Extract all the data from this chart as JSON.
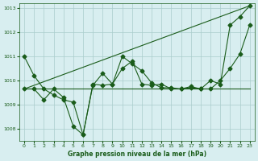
{
  "title": "Graphe pression niveau de la mer (hPa)",
  "background_color": "#d8eef0",
  "grid_color": "#aacccc",
  "line_color": "#1a5c1a",
  "ylim": [
    1007.5,
    1013.2
  ],
  "xlim": [
    -0.5,
    23.5
  ],
  "yticks": [
    1008,
    1009,
    1010,
    1011,
    1012,
    1013
  ],
  "xticks": [
    0,
    1,
    2,
    3,
    4,
    5,
    6,
    7,
    8,
    9,
    10,
    11,
    12,
    13,
    14,
    15,
    16,
    17,
    18,
    19,
    20,
    21,
    22,
    23
  ],
  "series": [
    {
      "x": [
        0,
        1,
        2,
        3,
        4,
        5,
        6,
        7,
        8,
        9,
        10,
        11,
        12,
        13,
        14,
        15,
        16,
        17,
        18,
        19,
        20,
        21,
        22,
        23
      ],
      "y": [
        1011.0,
        1010.2,
        1009.65,
        1009.4,
        1009.2,
        1009.1,
        1007.75,
        1009.85,
        1009.8,
        1009.85,
        1010.5,
        1010.8,
        1009.85,
        1009.8,
        1009.85,
        1009.65,
        1009.65,
        1009.75,
        1009.65,
        1010.0,
        1009.85,
        1012.3,
        1012.65,
        1013.1
      ],
      "marker": "D",
      "markersize": 2.5,
      "linewidth": 0.8
    },
    {
      "x": [
        0,
        23
      ],
      "y": [
        1009.65,
        1013.1
      ],
      "marker": null,
      "markersize": null,
      "linewidth": 0.8
    },
    {
      "x": [
        0,
        1,
        2,
        3,
        4,
        5,
        6,
        7,
        8,
        9,
        10,
        11,
        12,
        13,
        14,
        15,
        16,
        17,
        18,
        19,
        20,
        21,
        22,
        23
      ],
      "y": [
        1009.65,
        1009.65,
        1009.2,
        1009.65,
        1009.3,
        1008.1,
        1007.75,
        1009.8,
        1010.3,
        1009.85,
        1011.0,
        1010.7,
        1010.4,
        1009.9,
        1009.7,
        1009.7,
        1009.65,
        1009.7,
        1009.65,
        1009.65,
        1010.0,
        1010.5,
        1011.1,
        1012.3
      ],
      "marker": "D",
      "markersize": 2.5,
      "linewidth": 0.8
    },
    {
      "x": [
        0,
        1,
        2,
        3,
        4,
        5,
        6,
        7,
        8,
        9,
        10,
        11,
        12,
        13,
        14,
        15,
        16,
        17,
        18,
        19,
        20,
        21,
        22,
        23
      ],
      "y": [
        1009.65,
        1009.65,
        1009.65,
        1009.65,
        1009.65,
        1009.65,
        1009.65,
        1009.65,
        1009.65,
        1009.65,
        1009.65,
        1009.65,
        1009.65,
        1009.65,
        1009.65,
        1009.65,
        1009.65,
        1009.65,
        1009.65,
        1009.65,
        1009.65,
        1009.65,
        1009.65,
        1009.65
      ],
      "marker": null,
      "markersize": null,
      "linewidth": 0.8
    }
  ]
}
